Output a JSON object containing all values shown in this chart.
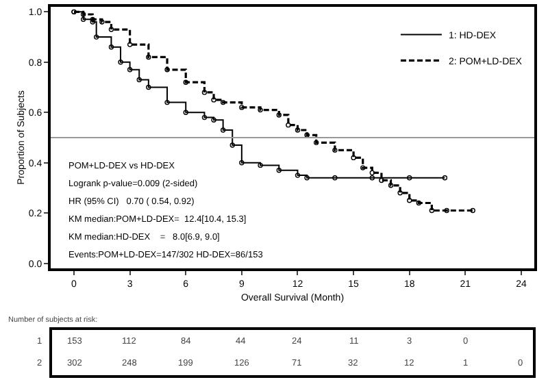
{
  "chart_data": [
    {
      "type": "step",
      "xlabel": "Overall Survival (Month)",
      "ylabel": "Proportion of Subjects",
      "xlim": [
        -1.25,
        24.7
      ],
      "xticks": [
        0,
        3,
        6,
        9,
        12,
        15,
        18,
        21,
        24
      ],
      "ylim": [
        -0.02,
        1.02
      ],
      "yticks": [
        {
          "value": 0,
          "label": "0.0"
        },
        0.2,
        0.4,
        0.6,
        0.8,
        {
          "value": 1,
          "label": "1.0"
        }
      ],
      "grid": false,
      "legend": "top right",
      "marker": "circle",
      "ref_lines": [
        {
          "axis": "y",
          "value": 0.5,
          "color": "#999999"
        }
      ],
      "annotations": [
        "POM+LD-DEX vs HD-DEX",
        "Logrank p-value=0.009 (2-sided)",
        "HR (95% CI)   0.70 ( 0.54, 0.92)",
        "KM median:POM+LD-DEX=  12.4[10.4, 15.3]",
        "KM median:HD-DEX    =   8.0[6.9, 9.0]",
        "Events:POM+LD-DEX=147/302 HD-DEX=86/153"
      ],
      "series": [
        {
          "name": "1: HD-DEX",
          "color": "#000000",
          "line_style": "solid",
          "x": [
            0,
            0.5,
            1,
            1.2,
            2,
            2.5,
            3,
            3.5,
            4,
            5,
            6,
            7,
            7.5,
            8,
            8.5,
            9,
            10,
            11,
            12,
            12.5,
            14,
            16,
            18,
            19.9
          ],
          "values": [
            1,
            0.97,
            0.96,
            0.9,
            0.86,
            0.8,
            0.77,
            0.73,
            0.7,
            0.64,
            0.6,
            0.58,
            0.57,
            0.53,
            0.47,
            0.4,
            0.39,
            0.37,
            0.35,
            0.34,
            0.34,
            0.34,
            0.34,
            0.34
          ]
        },
        {
          "name": "2: POM+LD-DEX",
          "color": "#000000",
          "line_style": "dashed",
          "x": [
            0,
            0.5,
            1,
            1.5,
            2,
            3,
            4,
            5,
            6,
            7,
            7.5,
            8,
            9,
            10,
            11,
            11.5,
            12,
            12.5,
            13,
            14,
            15,
            15.5,
            16,
            16.5,
            17,
            17.5,
            18,
            18.5,
            19.2,
            20,
            21.4
          ],
          "values": [
            1,
            0.99,
            0.97,
            0.96,
            0.93,
            0.87,
            0.82,
            0.77,
            0.72,
            0.68,
            0.65,
            0.64,
            0.62,
            0.61,
            0.59,
            0.55,
            0.53,
            0.51,
            0.48,
            0.45,
            0.42,
            0.38,
            0.36,
            0.33,
            0.31,
            0.28,
            0.25,
            0.24,
            0.21,
            0.21,
            0.21
          ]
        }
      ]
    },
    {
      "type": "other",
      "title": "Number of subjects at risk:",
      "categories": [
        null,
        null,
        null,
        null,
        null,
        null,
        null,
        null,
        null
      ],
      "y_categories": [
        "1",
        "2"
      ],
      "annotations": [
        "153",
        "112",
        "84",
        "44",
        "24",
        "11",
        "3",
        "0",
        "302",
        "248",
        "199",
        "126",
        "71",
        "32",
        "12",
        "1",
        "0"
      ]
    }
  ]
}
